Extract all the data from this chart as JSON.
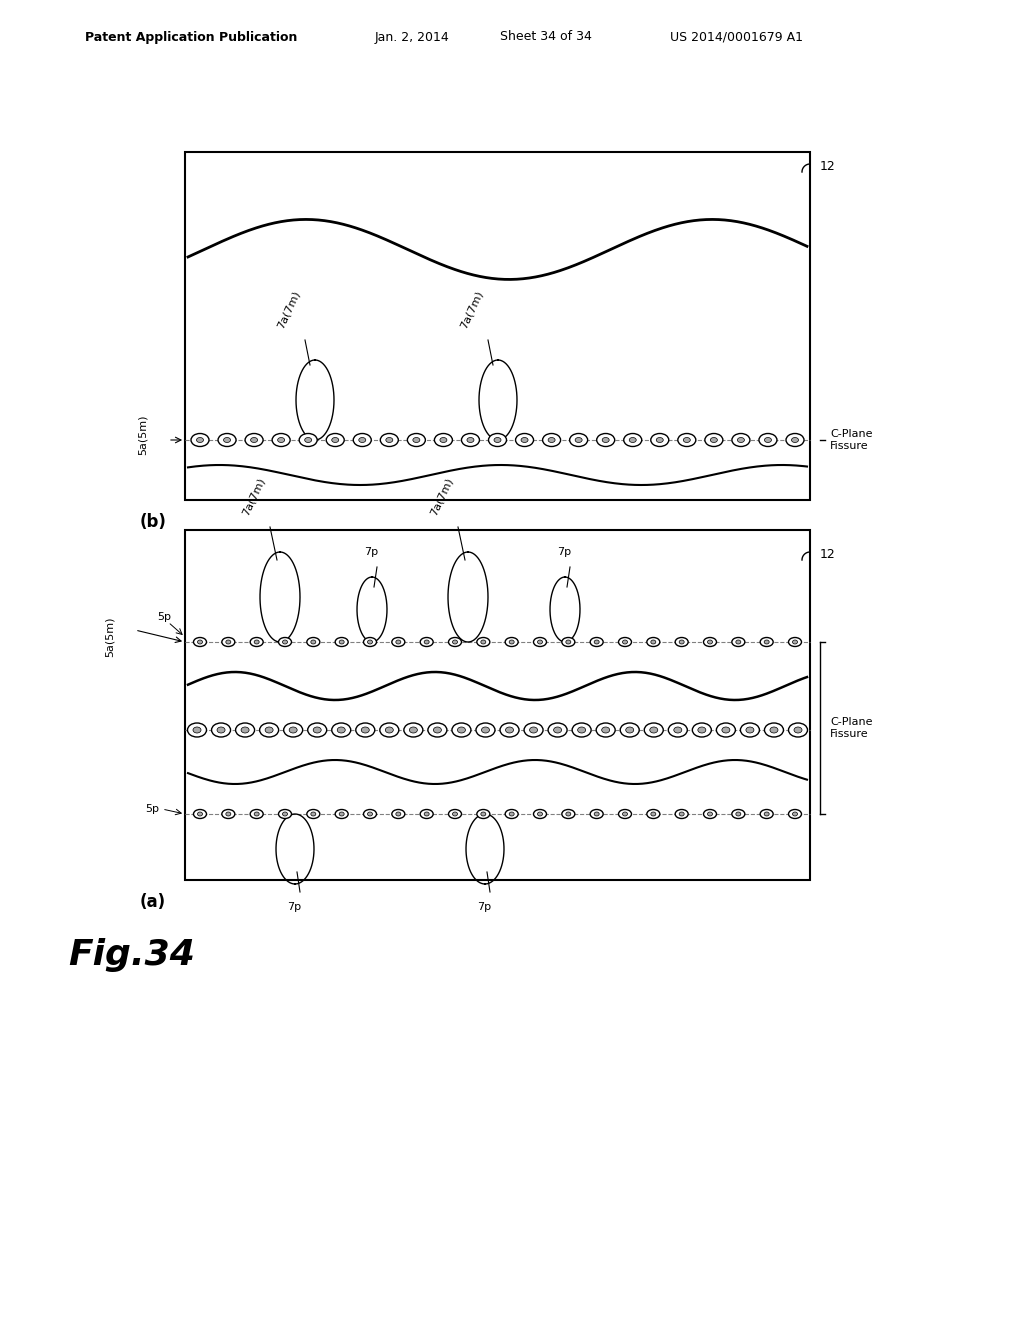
{
  "bg_color": "#ffffff",
  "header_text": "Patent Application Publication",
  "header_date": "Jan. 2, 2014",
  "header_sheet": "Sheet 34 of 34",
  "header_patent": "US 2014/0001679 A1",
  "fig_label": "Fig.34"
}
